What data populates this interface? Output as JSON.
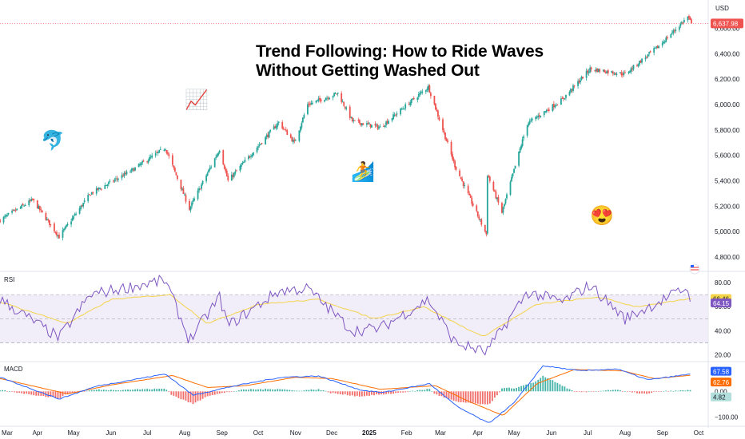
{
  "title": {
    "line1": "Trend Following: How to Ride Waves",
    "line2": "Without Getting Washed Out"
  },
  "currency_label": "USD",
  "emojis": {
    "dolphin": "🐬",
    "chart_up": "📈",
    "surfer": "🏄",
    "heart_eyes": "😍"
  },
  "colors": {
    "up": "#26a69a",
    "down": "#ef5350",
    "rsi_line": "#7e57c2",
    "rsi_ma": "#f3d44a",
    "macd_line": "#2962ff",
    "signal_line": "#ff6d00",
    "hist_pos": "#26a69a",
    "hist_neg": "#ef5350",
    "price_line": "#ef5350",
    "rsi_band": "#ede7f6"
  },
  "chart_data": [
    {
      "type": "candlestick",
      "title": "Trend Following: How to Ride Waves Without Getting Washed Out",
      "ylabel": "USD",
      "x_ticks": [
        "Mar",
        "Apr",
        "May",
        "Jun",
        "Jul",
        "Aug",
        "Sep",
        "Oct",
        "Nov",
        "Dec",
        "2025",
        "Feb",
        "Mar",
        "Apr",
        "May",
        "Jun",
        "Jul",
        "Aug",
        "Sep",
        "Oct"
      ],
      "y_ticks": [
        "4,800.00",
        "5,000.00",
        "5,200.00",
        "5,400.00",
        "5,600.00",
        "5,800.00",
        "6,000.00",
        "6,200.00",
        "6,400.00",
        "6,600.00"
      ],
      "ylim": [
        4700,
        6760
      ],
      "last_price": 6637.98,
      "last_price_label": "6,637.98",
      "close_path": [
        {
          "date": "2024-03-01",
          "close": 5090
        },
        {
          "date": "2024-03-28",
          "close": 5250
        },
        {
          "date": "2024-04-19",
          "close": 4960
        },
        {
          "date": "2024-05-15",
          "close": 5300
        },
        {
          "date": "2024-06-18",
          "close": 5480
        },
        {
          "date": "2024-07-16",
          "close": 5660
        },
        {
          "date": "2024-08-05",
          "close": 5180
        },
        {
          "date": "2024-08-30",
          "close": 5650
        },
        {
          "date": "2024-09-06",
          "close": 5400
        },
        {
          "date": "2024-10-18",
          "close": 5860
        },
        {
          "date": "2024-10-31",
          "close": 5700
        },
        {
          "date": "2024-11-11",
          "close": 6000
        },
        {
          "date": "2024-12-06",
          "close": 6090
        },
        {
          "date": "2024-12-18",
          "close": 5870
        },
        {
          "date": "2025-01-10",
          "close": 5820
        },
        {
          "date": "2025-02-19",
          "close": 6140
        },
        {
          "date": "2025-03-13",
          "close": 5520
        },
        {
          "date": "2025-04-08",
          "close": 4980
        },
        {
          "date": "2025-04-09",
          "close": 5450
        },
        {
          "date": "2025-04-21",
          "close": 5150
        },
        {
          "date": "2025-05-12",
          "close": 5850
        },
        {
          "date": "2025-06-10",
          "close": 6040
        },
        {
          "date": "2025-07-03",
          "close": 6280
        },
        {
          "date": "2025-08-01",
          "close": 6240
        },
        {
          "date": "2025-08-29",
          "close": 6460
        },
        {
          "date": "2025-09-22",
          "close": 6690
        },
        {
          "date": "2025-09-25",
          "close": 6637.98
        }
      ]
    },
    {
      "type": "line",
      "title": "RSI",
      "y_ticks": [
        "80.00",
        "60.00",
        "40.00",
        "20.00"
      ],
      "ylim": [
        15,
        88
      ],
      "bands": [
        30,
        50,
        70
      ],
      "series": [
        {
          "values_path": [
            {
              "date": "2024-03-01",
              "value": 66
            },
            {
              "date": "2024-04-19",
              "value": 34
            },
            {
              "date": "2024-05-15",
              "value": 70
            },
            {
              "date": "2024-07-16",
              "value": 82
            },
            {
              "date": "2024-08-05",
              "value": 32
            },
            {
              "date": "2024-08-30",
              "value": 68
            },
            {
              "date": "2024-09-06",
              "value": 44
            },
            {
              "date": "2024-10-18",
              "value": 73
            },
            {
              "date": "2024-11-11",
              "value": 75
            },
            {
              "date": "2024-12-18",
              "value": 40
            },
            {
              "date": "2025-01-10",
              "value": 42
            },
            {
              "date": "2025-02-19",
              "value": 66
            },
            {
              "date": "2025-03-13",
              "value": 30
            },
            {
              "date": "2025-04-08",
              "value": 22
            },
            {
              "date": "2025-05-12",
              "value": 72
            },
            {
              "date": "2025-06-10",
              "value": 64
            },
            {
              "date": "2025-07-03",
              "value": 78
            },
            {
              "date": "2025-08-01",
              "value": 50
            },
            {
              "date": "2025-08-29",
              "value": 64
            },
            {
              "date": "2025-09-22",
              "value": 76
            },
            {
              "date": "2025-09-25",
              "value": 64.15
            }
          ],
          "last": 64.15,
          "last_label": "64.15"
        },
        {
          "values_path": [
            {
              "date": "2024-03-01",
              "value": 64
            },
            {
              "date": "2024-04-26",
              "value": 46
            },
            {
              "date": "2024-06-01",
              "value": 66
            },
            {
              "date": "2024-07-20",
              "value": 70
            },
            {
              "date": "2024-08-20",
              "value": 46
            },
            {
              "date": "2024-10-01",
              "value": 62
            },
            {
              "date": "2024-11-20",
              "value": 66
            },
            {
              "date": "2025-01-05",
              "value": 50
            },
            {
              "date": "2025-02-15",
              "value": 60
            },
            {
              "date": "2025-04-05",
              "value": 35
            },
            {
              "date": "2025-05-20",
              "value": 62
            },
            {
              "date": "2025-07-10",
              "value": 68
            },
            {
              "date": "2025-08-10",
              "value": 60
            },
            {
              "date": "2025-09-25",
              "value": 66.46
            }
          ],
          "last": 66.46,
          "last_label": "66.46"
        }
      ]
    },
    {
      "type": "bar+line",
      "title": "MACD",
      "y_ticks": [
        "0.00",
        "−100.00"
      ],
      "ylim": [
        -130,
        110
      ],
      "macd_last": 67.58,
      "macd_last_label": "67.58",
      "signal_last": 62.76,
      "signal_last_label": "62.76",
      "hist_last": 4.82,
      "hist_last_label": "4.82",
      "macd_path": [
        {
          "date": "2024-03-01",
          "value": 55
        },
        {
          "date": "2024-04-19",
          "value": -30
        },
        {
          "date": "2024-05-20",
          "value": 20
        },
        {
          "date": "2024-07-16",
          "value": 68
        },
        {
          "date": "2024-08-08",
          "value": -15
        },
        {
          "date": "2024-09-10",
          "value": 20
        },
        {
          "date": "2024-10-20",
          "value": 55
        },
        {
          "date": "2024-11-20",
          "value": 60
        },
        {
          "date": "2024-12-25",
          "value": 5
        },
        {
          "date": "2025-01-12",
          "value": -5
        },
        {
          "date": "2025-02-20",
          "value": 30
        },
        {
          "date": "2025-03-15",
          "value": -60
        },
        {
          "date": "2025-04-10",
          "value": -125
        },
        {
          "date": "2025-05-01",
          "value": -45
        },
        {
          "date": "2025-05-25",
          "value": 100
        },
        {
          "date": "2025-06-25",
          "value": 80
        },
        {
          "date": "2025-07-25",
          "value": 88
        },
        {
          "date": "2025-08-20",
          "value": 45
        },
        {
          "date": "2025-09-25",
          "value": 67.58
        }
      ],
      "signal_path": [
        {
          "date": "2024-03-01",
          "value": 50
        },
        {
          "date": "2024-04-26",
          "value": -10
        },
        {
          "date": "2024-06-01",
          "value": 25
        },
        {
          "date": "2024-07-22",
          "value": 62
        },
        {
          "date": "2024-08-20",
          "value": 15
        },
        {
          "date": "2024-09-20",
          "value": 22
        },
        {
          "date": "2024-11-01",
          "value": 55
        },
        {
          "date": "2024-12-01",
          "value": 50
        },
        {
          "date": "2025-01-10",
          "value": 8
        },
        {
          "date": "2025-02-25",
          "value": 22
        },
        {
          "date": "2025-03-25",
          "value": -40
        },
        {
          "date": "2025-04-22",
          "value": -95
        },
        {
          "date": "2025-05-20",
          "value": 30
        },
        {
          "date": "2025-06-20",
          "value": 85
        },
        {
          "date": "2025-07-30",
          "value": 80
        },
        {
          "date": "2025-08-25",
          "value": 50
        },
        {
          "date": "2025-09-25",
          "value": 62.76
        }
      ]
    }
  ]
}
